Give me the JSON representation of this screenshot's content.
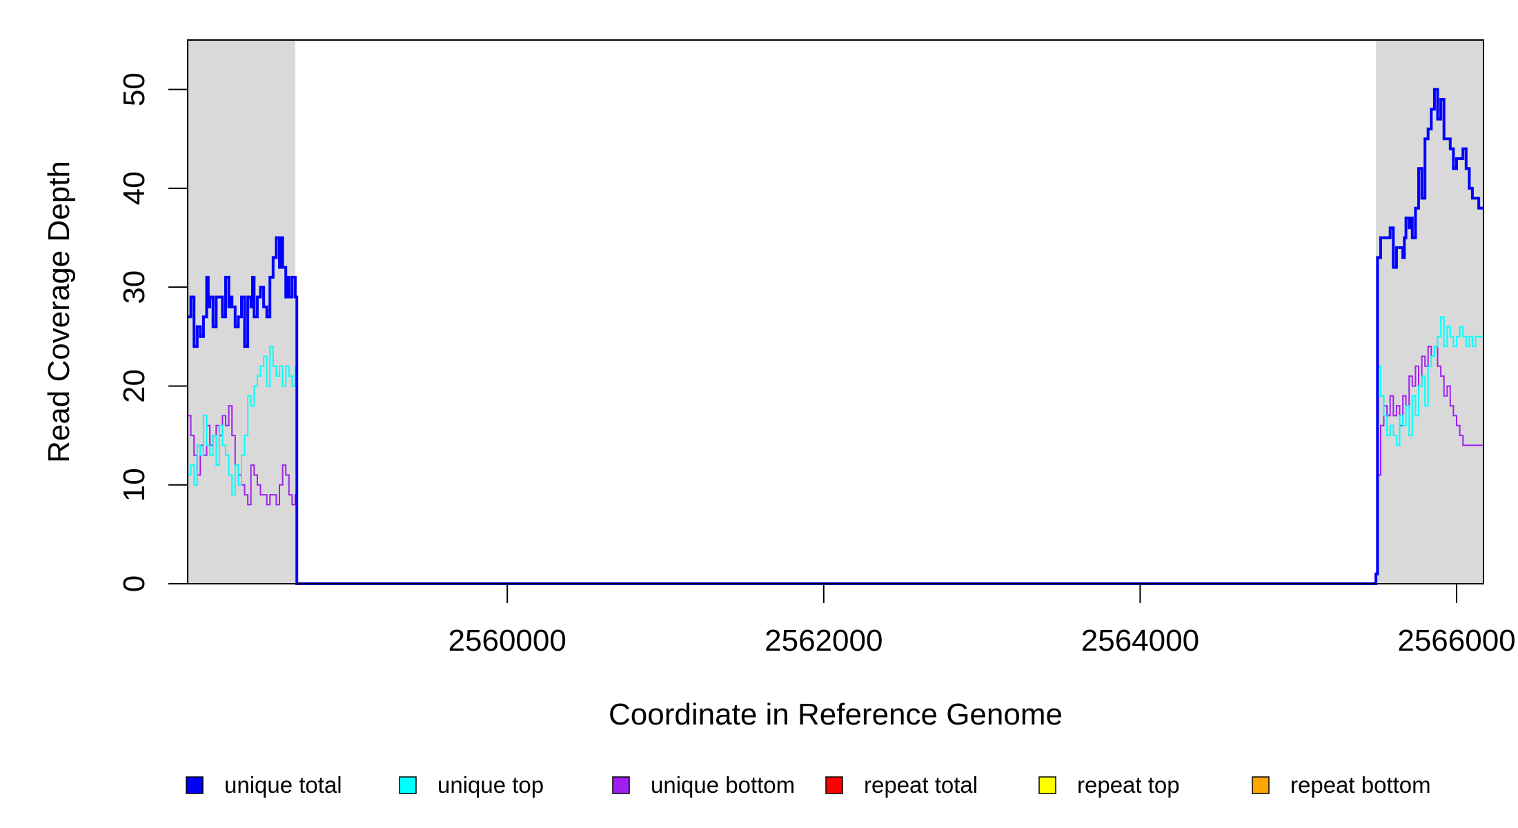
{
  "chart_data": {
    "type": "line",
    "title": "",
    "xlabel": "Coordinate in Reference Genome",
    "ylabel": "Read Coverage Depth",
    "xlim": [
      2557980,
      2566170
    ],
    "ylim": [
      0,
      55
    ],
    "x_ticks": [
      2560000,
      2562000,
      2564000,
      2566000
    ],
    "x_tick_labels": [
      "2560000",
      "2562000",
      "2564000",
      "2566000"
    ],
    "y_ticks": [
      0,
      10,
      20,
      30,
      40,
      50
    ],
    "y_tick_labels": [
      "0",
      "10",
      "20",
      "30",
      "40",
      "50"
    ],
    "grid": false,
    "legend_position": "bottom",
    "shaded_regions": [
      {
        "x_start": 2557980,
        "x_end": 2558660,
        "color": "#d9d9d9"
      },
      {
        "x_start": 2565490,
        "x_end": 2566170,
        "color": "#d9d9d9"
      }
    ],
    "series": [
      {
        "name": "unique total",
        "color": "#0000ff",
        "x": [
          2557980,
          2558000,
          2558020,
          2558040,
          2558060,
          2558080,
          2558100,
          2558110,
          2558120,
          2558140,
          2558160,
          2558180,
          2558200,
          2558220,
          2558240,
          2558250,
          2558260,
          2558280,
          2558300,
          2558320,
          2558340,
          2558360,
          2558380,
          2558390,
          2558400,
          2558420,
          2558440,
          2558460,
          2558480,
          2558500,
          2558520,
          2558540,
          2558560,
          2558570,
          2558580,
          2558600,
          2558610,
          2558620,
          2558640,
          2558660,
          2558670,
          2565480,
          2565490,
          2565500,
          2565520,
          2565540,
          2565580,
          2565600,
          2565620,
          2565660,
          2565670,
          2565680,
          2565700,
          2565710,
          2565720,
          2565740,
          2565760,
          2565780,
          2565800,
          2565820,
          2565840,
          2565860,
          2565880,
          2565900,
          2565920,
          2565940,
          2565960,
          2565980,
          2566000,
          2566040,
          2566060,
          2566080,
          2566100,
          2566120,
          2566140,
          2566170
        ],
        "values": [
          27,
          29,
          24,
          26,
          25,
          27,
          31,
          28,
          29,
          26,
          29,
          29,
          27,
          31,
          28,
          29,
          28,
          26,
          27,
          29,
          24,
          29,
          28,
          31,
          27,
          29,
          30,
          28,
          27,
          31,
          33,
          35,
          32,
          35,
          32,
          29,
          31,
          29,
          31,
          29,
          0,
          0,
          1,
          33,
          35,
          35,
          36,
          32,
          34,
          33,
          35,
          37,
          36,
          37,
          35,
          38,
          42,
          39,
          45,
          46,
          48,
          50,
          47,
          49,
          45,
          45,
          44,
          42,
          43,
          44,
          42,
          40,
          39,
          39,
          38,
          38
        ]
      },
      {
        "name": "unique top",
        "color": "#00ffff",
        "x": [
          2557980,
          2558000,
          2558020,
          2558040,
          2558060,
          2558080,
          2558100,
          2558120,
          2558140,
          2558160,
          2558180,
          2558200,
          2558220,
          2558240,
          2558260,
          2558280,
          2558300,
          2558320,
          2558340,
          2558360,
          2558380,
          2558400,
          2558420,
          2558440,
          2558460,
          2558480,
          2558500,
          2558520,
          2558540,
          2558560,
          2558580,
          2558600,
          2558620,
          2558640,
          2558660,
          2558670,
          2565480,
          2565490,
          2565500,
          2565520,
          2565540,
          2565560,
          2565580,
          2565600,
          2565620,
          2565640,
          2565660,
          2565680,
          2565700,
          2565720,
          2565740,
          2565760,
          2565780,
          2565800,
          2565820,
          2565840,
          2565860,
          2565880,
          2565900,
          2565920,
          2565940,
          2565960,
          2565980,
          2566000,
          2566020,
          2566040,
          2566060,
          2566080,
          2566100,
          2566120,
          2566140,
          2566170
        ],
        "values": [
          11,
          12,
          10,
          14,
          13,
          17,
          14,
          13,
          15,
          12,
          16,
          14,
          13,
          11,
          9,
          12,
          10,
          13,
          15,
          19,
          18,
          20,
          21,
          22,
          23,
          20,
          24,
          22,
          21,
          22,
          20,
          22,
          21,
          20,
          22,
          0,
          0,
          1,
          22,
          19,
          17,
          15,
          16,
          15,
          14,
          17,
          16,
          18,
          15,
          19,
          17,
          20,
          21,
          18,
          22,
          23,
          24,
          25,
          27,
          24,
          26,
          25,
          24,
          25,
          26,
          25,
          24,
          25,
          24,
          25,
          25,
          25
        ]
      },
      {
        "name": "unique bottom",
        "color": "#a020f0",
        "x": [
          2557980,
          2558000,
          2558020,
          2558040,
          2558060,
          2558080,
          2558100,
          2558120,
          2558140,
          2558160,
          2558180,
          2558200,
          2558220,
          2558240,
          2558260,
          2558280,
          2558300,
          2558320,
          2558340,
          2558360,
          2558380,
          2558400,
          2558420,
          2558440,
          2558460,
          2558480,
          2558500,
          2558520,
          2558540,
          2558560,
          2558580,
          2558600,
          2558620,
          2558640,
          2558660,
          2558670,
          2565480,
          2565490,
          2565500,
          2565520,
          2565540,
          2565560,
          2565580,
          2565600,
          2565620,
          2565640,
          2565660,
          2565680,
          2565700,
          2565720,
          2565740,
          2565760,
          2565780,
          2565800,
          2565820,
          2565840,
          2565860,
          2565880,
          2565900,
          2565920,
          2565940,
          2565960,
          2565980,
          2566000,
          2566020,
          2566040,
          2566060,
          2566080,
          2566100,
          2566120,
          2566140,
          2566170
        ],
        "values": [
          17,
          15,
          13,
          11,
          14,
          13,
          16,
          14,
          15,
          16,
          15,
          17,
          16,
          18,
          15,
          12,
          11,
          10,
          9,
          8,
          12,
          11,
          10,
          9,
          9,
          8,
          9,
          9,
          8,
          10,
          12,
          11,
          9,
          8,
          9,
          0,
          0,
          1,
          11,
          16,
          18,
          17,
          19,
          17,
          18,
          16,
          19,
          18,
          21,
          20,
          22,
          20,
          23,
          22,
          24,
          23,
          24,
          22,
          21,
          19,
          20,
          18,
          17,
          16,
          15,
          14,
          14,
          14,
          14,
          14,
          14,
          14
        ]
      },
      {
        "name": "repeat total",
        "color": "#ff0000",
        "x": [
          2557980,
          2566170
        ],
        "values": [
          0,
          0
        ]
      },
      {
        "name": "repeat top",
        "color": "#ffff00",
        "x": [
          2557980,
          2566170
        ],
        "values": [
          0,
          0
        ]
      },
      {
        "name": "repeat bottom",
        "color": "#ffa500",
        "x": [
          2557980,
          2566170
        ],
        "values": [
          0,
          0
        ]
      }
    ]
  }
}
